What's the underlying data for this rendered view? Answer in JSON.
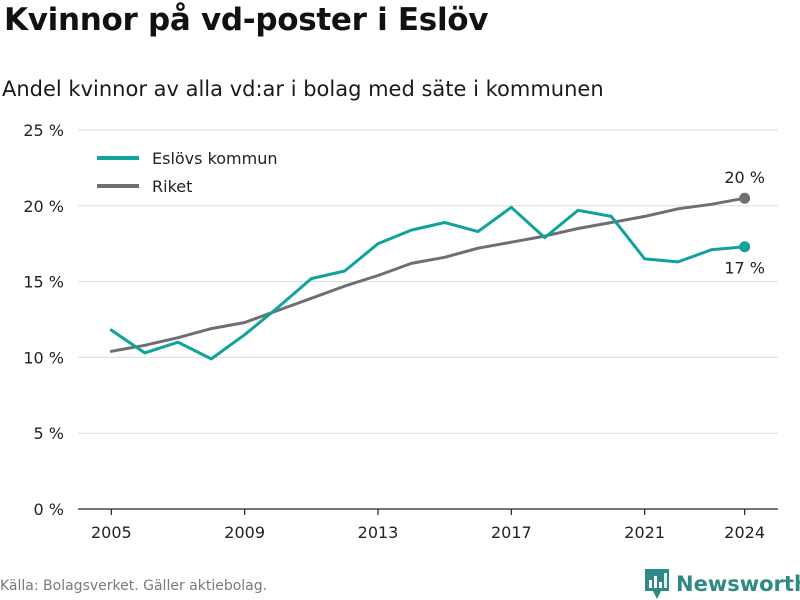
{
  "header": {
    "title": "Kvinnor på vd-poster i Eslöv",
    "subtitle": "Andel kvinnor av alla vd:ar i bolag med säte i kommunen"
  },
  "footer": {
    "source": "Källa: Bolagsverket. Gäller aktiebolag.",
    "brand_name": "Newsworthy",
    "brand_icon": "newsworthy-logo-icon",
    "brand_color": "#2f8a86"
  },
  "chart_data": {
    "type": "line",
    "title": "Kvinnor på vd-poster i Eslöv",
    "subtitle": "Andel kvinnor av alla vd:ar i bolag med säte i kommunen",
    "xlabel": "",
    "ylabel": "",
    "x": [
      2005,
      2006,
      2007,
      2008,
      2009,
      2010,
      2011,
      2012,
      2013,
      2014,
      2015,
      2016,
      2017,
      2018,
      2019,
      2020,
      2021,
      2022,
      2023,
      2024
    ],
    "xlim": [
      2004,
      2025
    ],
    "x_ticks": [
      2005,
      2009,
      2013,
      2017,
      2021,
      2024
    ],
    "x_tick_labels": [
      "2005",
      "2009",
      "2013",
      "2017",
      "2021",
      "2024"
    ],
    "ylim": [
      0,
      25
    ],
    "y_ticks": [
      0,
      5,
      10,
      15,
      20,
      25
    ],
    "y_tick_labels": [
      "0 %",
      "5 %",
      "10 %",
      "15 %",
      "20 %",
      "25 %"
    ],
    "grid": true,
    "legend_position": "top-left",
    "series": [
      {
        "name": "Eslövs kommun",
        "color": "#0fa39b",
        "values": [
          11.8,
          10.3,
          11.0,
          9.9,
          11.5,
          13.3,
          15.2,
          15.7,
          17.5,
          18.4,
          18.9,
          18.3,
          19.9,
          17.9,
          19.7,
          19.3,
          16.5,
          16.3,
          17.1,
          17.3
        ],
        "end_label": "17 %"
      },
      {
        "name": "Riket",
        "color": "#6f6e73",
        "values": [
          10.4,
          10.8,
          11.3,
          11.9,
          12.3,
          13.1,
          13.9,
          14.7,
          15.4,
          16.2,
          16.6,
          17.2,
          17.6,
          18.0,
          18.5,
          18.9,
          19.3,
          19.8,
          20.1,
          20.5
        ],
        "end_label": "20 %"
      }
    ]
  }
}
